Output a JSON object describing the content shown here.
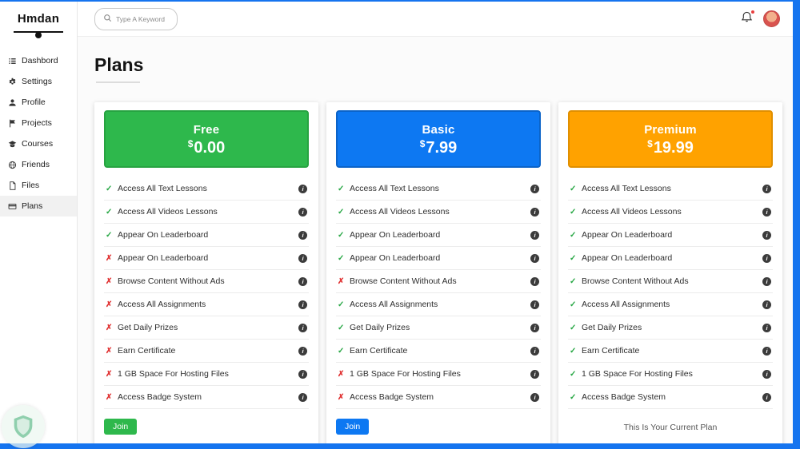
{
  "window": {
    "frame_color": "#1574ef"
  },
  "brand": {
    "name": "Hmdan"
  },
  "topbar": {
    "search_placeholder": "Type A Keyword",
    "icons": [
      "search-icon",
      "bell-icon",
      "avatar"
    ]
  },
  "sidebar": {
    "items": [
      {
        "label": "Dashbord",
        "icon": "dashboard-icon",
        "active": false
      },
      {
        "label": "Settings",
        "icon": "settings-icon",
        "active": false
      },
      {
        "label": "Profile",
        "icon": "profile-icon",
        "active": false
      },
      {
        "label": "Projects",
        "icon": "projects-icon",
        "active": false
      },
      {
        "label": "Courses",
        "icon": "courses-icon",
        "active": false
      },
      {
        "label": "Friends",
        "icon": "friends-icon",
        "active": false
      },
      {
        "label": "Files",
        "icon": "files-icon",
        "active": false
      },
      {
        "label": "Plans",
        "icon": "plans-icon",
        "active": true
      }
    ]
  },
  "page": {
    "title": "Plans"
  },
  "status_colors": {
    "included": "#28a745",
    "excluded": "#e03131"
  },
  "plans": [
    {
      "name": "Free",
      "currency": "$",
      "price": "0.00",
      "header_bg": "#2eb84c",
      "header_border": "#27a341",
      "action": {
        "type": "button",
        "label": "Join",
        "color": "#2eb84c"
      },
      "features": [
        {
          "text": "Access All Text Lessons",
          "included": true
        },
        {
          "text": "Access All Videos Lessons",
          "included": true
        },
        {
          "text": "Appear On Leaderboard",
          "included": true
        },
        {
          "text": "Appear On Leaderboard",
          "included": false
        },
        {
          "text": "Browse Content Without Ads",
          "included": false
        },
        {
          "text": "Access All Assignments",
          "included": false
        },
        {
          "text": "Get Daily Prizes",
          "included": false
        },
        {
          "text": "Earn Certificate",
          "included": false
        },
        {
          "text": "1 GB Space For Hosting Files",
          "included": false
        },
        {
          "text": "Access Badge System",
          "included": false
        }
      ]
    },
    {
      "name": "Basic",
      "currency": "$",
      "price": "7.99",
      "header_bg": "#0d78f2",
      "header_border": "#0b63c8",
      "action": {
        "type": "button",
        "label": "Join",
        "color": "#0d78f2"
      },
      "features": [
        {
          "text": "Access All Text Lessons",
          "included": true
        },
        {
          "text": "Access All Videos Lessons",
          "included": true
        },
        {
          "text": "Appear On Leaderboard",
          "included": true
        },
        {
          "text": "Appear On Leaderboard",
          "included": true
        },
        {
          "text": "Browse Content Without Ads",
          "included": false
        },
        {
          "text": "Access All Assignments",
          "included": true
        },
        {
          "text": "Get Daily Prizes",
          "included": true
        },
        {
          "text": "Earn Certificate",
          "included": true
        },
        {
          "text": "1 GB Space For Hosting Files",
          "included": false
        },
        {
          "text": "Access Badge System",
          "included": false
        }
      ]
    },
    {
      "name": "Premium",
      "currency": "$",
      "price": "19.99",
      "header_bg": "#ffa200",
      "header_border": "#e08f00",
      "action": {
        "type": "text",
        "label": "This Is Your Current Plan"
      },
      "features": [
        {
          "text": "Access All Text Lessons",
          "included": true
        },
        {
          "text": "Access All Videos Lessons",
          "included": true
        },
        {
          "text": "Appear On Leaderboard",
          "included": true
        },
        {
          "text": "Appear On Leaderboard",
          "included": true
        },
        {
          "text": "Browse Content Without Ads",
          "included": true
        },
        {
          "text": "Access All Assignments",
          "included": true
        },
        {
          "text": "Get Daily Prizes",
          "included": true
        },
        {
          "text": "Earn Certificate",
          "included": true
        },
        {
          "text": "1 GB Space For Hosting Files",
          "included": true
        },
        {
          "text": "Access Badge System",
          "included": true
        }
      ]
    }
  ]
}
